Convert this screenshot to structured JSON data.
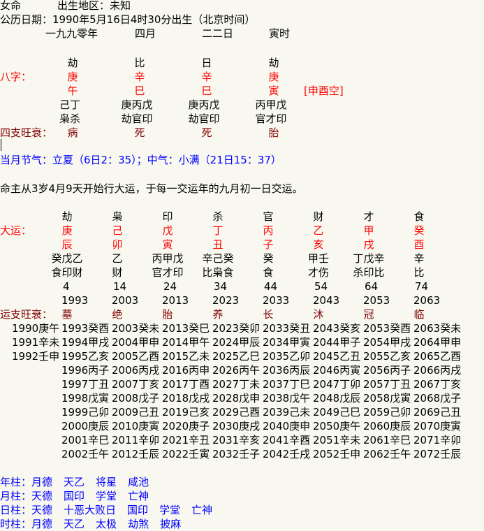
{
  "header": {
    "gender": "女命",
    "birthplace": "出生地区：未知",
    "solar_date": "公历日期：1990年5月16日4时30分出生（北京时间）",
    "lunar": [
      "一九九零年",
      "四月",
      "二二日",
      "寅时"
    ]
  },
  "bazi": {
    "label": "八字：",
    "ten_gods": [
      "劫",
      "比",
      "日",
      "劫"
    ],
    "stems": [
      "庚",
      "辛",
      "辛",
      "庚"
    ],
    "branches": [
      "午",
      "巳",
      "巳",
      "寅"
    ],
    "kongwang": "[申酉空]",
    "hidden_stems": [
      "己丁",
      "庚丙戊",
      "庚丙戊",
      "丙甲戊"
    ],
    "hidden_gods": [
      "枭杀",
      "劫官印",
      "劫官印",
      "官才印"
    ],
    "state_label": "四支旺衰：",
    "states": [
      "病",
      "死",
      "死",
      "胎"
    ]
  },
  "jieqi": "当月节气：立夏（6日2：35）；中气：小满（21日15：37）",
  "dayun_intro": "命主从3岁4月9天开始行大运，于每一交运年的九月初一日交运。",
  "dayun": {
    "label": "大运：",
    "ten_gods": [
      "劫",
      "枭",
      "印",
      "杀",
      "官",
      "财",
      "才",
      "食"
    ],
    "stems": [
      "庚",
      "己",
      "戊",
      "丁",
      "丙",
      "乙",
      "甲",
      "癸"
    ],
    "branches": [
      "辰",
      "卯",
      "寅",
      "丑",
      "子",
      "亥",
      "戌",
      "酉"
    ],
    "hidden_stems": [
      "癸戊乙",
      "乙",
      "丙甲戊",
      "辛己癸",
      "癸",
      "甲壬",
      "丁戊辛",
      "辛"
    ],
    "hidden_gods": [
      "食印财",
      "财",
      "官才印",
      "比枭食",
      "食",
      "才伤",
      "杀印比",
      "比"
    ],
    "ages": [
      "4",
      "14",
      "24",
      "34",
      "44",
      "54",
      "64",
      "74"
    ],
    "years": [
      "1993",
      "2003",
      "2013",
      "2023",
      "2033",
      "2043",
      "2053",
      "2063"
    ],
    "state_label": "运支旺衰：",
    "states": [
      "墓",
      "绝",
      "胎",
      "养",
      "长",
      "沐",
      "冠",
      "临"
    ]
  },
  "pre_years": [
    "1990庚午",
    "1991辛未",
    "1992壬申"
  ],
  "liunian": [
    [
      "1993癸酉",
      "1994甲戌",
      "1995乙亥",
      "1996丙子",
      "1997丁丑",
      "1998戊寅",
      "1999己卯",
      "2000庚辰",
      "2001辛巳",
      "2002壬午"
    ],
    [
      "2003癸未",
      "2004甲申",
      "2005乙酉",
      "2006丙戌",
      "2007丁亥",
      "2008戊子",
      "2009己丑",
      "2010庚寅",
      "2011辛卯",
      "2012壬辰"
    ],
    [
      "2013癸巳",
      "2014甲午",
      "2015乙未",
      "2016丙申",
      "2017丁酉",
      "2018戊戌",
      "2019己亥",
      "2020庚子",
      "2021辛丑",
      "2022壬寅"
    ],
    [
      "2023癸卯",
      "2024甲辰",
      "2025乙巳",
      "2026丙午",
      "2027丁未",
      "2028戊申",
      "2029己酉",
      "2030庚戌",
      "2031辛亥",
      "2032壬子"
    ],
    [
      "2033癸丑",
      "2034甲寅",
      "2035乙卯",
      "2036丙辰",
      "2037丁巳",
      "2038戊午",
      "2039己未",
      "2040庚申",
      "2041辛酉",
      "2042壬戌"
    ],
    [
      "2043癸亥",
      "2044甲子",
      "2045乙丑",
      "2046丙寅",
      "2047丁卯",
      "2048戊辰",
      "2049己巳",
      "2050庚午",
      "2051辛未",
      "2052壬申"
    ],
    [
      "2053癸酉",
      "2054甲戌",
      "2055乙亥",
      "2056丙子",
      "2057丁丑",
      "2058戊寅",
      "2059己卯",
      "2060庚辰",
      "2061辛巳",
      "2062壬午"
    ],
    [
      "2063癸未",
      "2064甲申",
      "2065乙酉",
      "2066丙戌",
      "2067丁亥",
      "2068戊子",
      "2069己丑",
      "2070庚寅",
      "2071辛卯",
      "2072壬辰"
    ]
  ],
  "shensha": [
    {
      "label": "年柱：",
      "items": [
        "月德",
        "天乙",
        "将星",
        "咸池"
      ]
    },
    {
      "label": "月柱：",
      "items": [
        "天德",
        "国印",
        "学堂",
        "亡神"
      ]
    },
    {
      "label": "日柱：",
      "items": [
        "天德",
        "十恶大败日",
        "国印",
        "学堂",
        "亡神"
      ]
    },
    {
      "label": "时柱：",
      "items": [
        "月德",
        "天乙",
        "太极",
        "劫煞",
        "披麻"
      ]
    }
  ],
  "colors": {
    "background": "#f8f8f0",
    "stem_branch": "#ff0000",
    "state": "#800000",
    "info": "#0000ff"
  }
}
